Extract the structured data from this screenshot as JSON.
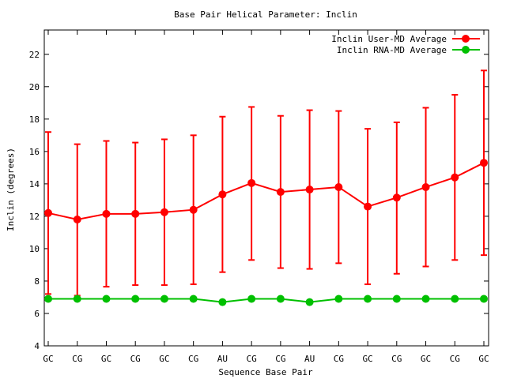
{
  "chart_data": {
    "type": "line",
    "title": "Base Pair Helical Parameter: Inclin",
    "xlabel": "Sequence Base Pair",
    "ylabel": "Inclin (degrees)",
    "categories": [
      "GC",
      "CG",
      "GC",
      "CG",
      "GC",
      "CG",
      "AU",
      "CG",
      "CG",
      "AU",
      "CG",
      "GC",
      "CG",
      "GC",
      "CG",
      "GC"
    ],
    "ylim": [
      4,
      23.5
    ],
    "yticks": [
      4,
      6,
      8,
      10,
      12,
      14,
      16,
      18,
      20,
      22
    ],
    "grid": false,
    "legend_position": "top-right",
    "series": [
      {
        "name": "Inclin User-MD Average",
        "color": "#ff0000",
        "values": [
          12.2,
          11.8,
          12.15,
          12.15,
          12.25,
          12.4,
          13.35,
          14.05,
          13.5,
          13.65,
          13.8,
          12.6,
          13.15,
          13.8,
          14.4,
          15.3
        ],
        "error_low": [
          7.2,
          7.1,
          7.65,
          7.75,
          7.75,
          7.8,
          8.55,
          9.3,
          8.8,
          8.75,
          9.1,
          7.8,
          8.45,
          8.9,
          9.3,
          9.6
        ],
        "error_high": [
          17.2,
          16.45,
          16.65,
          16.55,
          16.75,
          17.0,
          18.15,
          18.75,
          18.2,
          18.55,
          18.5,
          17.4,
          17.8,
          18.7,
          19.5,
          21.0
        ]
      },
      {
        "name": "Inclin RNA-MD Average",
        "color": "#00c000",
        "values": [
          6.9,
          6.9,
          6.9,
          6.9,
          6.9,
          6.9,
          6.7,
          6.9,
          6.9,
          6.7,
          6.9,
          6.9,
          6.9,
          6.9,
          6.9,
          6.9
        ]
      }
    ]
  }
}
